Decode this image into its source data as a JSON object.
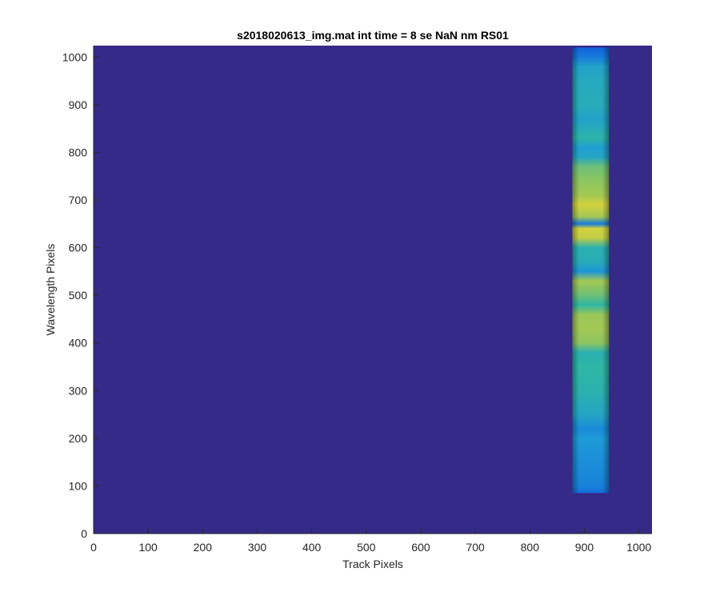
{
  "chart_data": {
    "type": "heatmap",
    "title": "s2018020613_img.mat int time = 8 se  NaN nm RS01",
    "xlabel": "Track Pixels",
    "ylabel": "Wavelength Pixels",
    "xlim": [
      0,
      1024
    ],
    "ylim": [
      0,
      1024
    ],
    "x_ticks": [
      0,
      100,
      200,
      300,
      400,
      500,
      600,
      700,
      800,
      900,
      1000
    ],
    "y_ticks": [
      0,
      100,
      200,
      300,
      400,
      500,
      600,
      700,
      800,
      900,
      1000
    ],
    "grid": false,
    "colormap": "parula",
    "colors": {
      "background": "#352a87",
      "low": "#0f5cdd",
      "mid_low": "#1e9bd7",
      "mid": "#2eb7a4",
      "mid_high": "#99c659",
      "high": "#f9d82a"
    },
    "illuminated_track": {
      "x_start": 878,
      "x_end": 945,
      "y_start": 85,
      "y_end": 1020
    },
    "intensity_profile": [
      {
        "y": 85,
        "level": 0.25
      },
      {
        "y": 100,
        "level": 0.32
      },
      {
        "y": 150,
        "level": 0.36
      },
      {
        "y": 200,
        "level": 0.4
      },
      {
        "y": 220,
        "level": 0.35
      },
      {
        "y": 250,
        "level": 0.48
      },
      {
        "y": 300,
        "level": 0.56
      },
      {
        "y": 350,
        "level": 0.6
      },
      {
        "y": 380,
        "level": 0.55
      },
      {
        "y": 400,
        "level": 0.78
      },
      {
        "y": 430,
        "level": 0.82
      },
      {
        "y": 460,
        "level": 0.8
      },
      {
        "y": 480,
        "level": 0.6
      },
      {
        "y": 500,
        "level": 0.72
      },
      {
        "y": 530,
        "level": 0.82
      },
      {
        "y": 550,
        "level": 0.38
      },
      {
        "y": 570,
        "level": 0.52
      },
      {
        "y": 600,
        "level": 0.55
      },
      {
        "y": 620,
        "level": 0.88
      },
      {
        "y": 640,
        "level": 0.92
      },
      {
        "y": 650,
        "level": 0.3
      },
      {
        "y": 665,
        "level": 0.82
      },
      {
        "y": 690,
        "level": 0.92
      },
      {
        "y": 710,
        "level": 0.82
      },
      {
        "y": 740,
        "level": 0.78
      },
      {
        "y": 770,
        "level": 0.72
      },
      {
        "y": 790,
        "level": 0.48
      },
      {
        "y": 810,
        "level": 0.42
      },
      {
        "y": 830,
        "level": 0.58
      },
      {
        "y": 870,
        "level": 0.45
      },
      {
        "y": 900,
        "level": 0.52
      },
      {
        "y": 950,
        "level": 0.5
      },
      {
        "y": 980,
        "level": 0.45
      },
      {
        "y": 1000,
        "level": 0.3
      },
      {
        "y": 1020,
        "level": 0.22
      }
    ]
  }
}
